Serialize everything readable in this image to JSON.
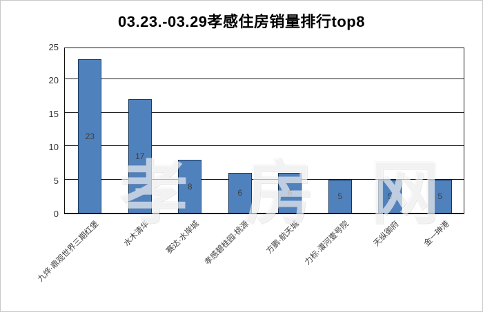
{
  "title": "03.23.-03.29孝感住房销量排行top8",
  "watermark_text": "孝房网",
  "chart_data": {
    "type": "bar",
    "title": "03.23.-03.29孝感住房销量排行top8",
    "categories": [
      "九烨·鼎观世界三期红堡",
      "水木清华",
      "赛达·水岸城",
      "孝感碧桂园·桃源",
      "方鹏·航天城",
      "力标·澴河壹号院",
      "天纵御府",
      "金一珅港"
    ],
    "values": [
      23,
      17,
      8,
      6,
      6,
      5,
      5,
      5
    ],
    "data_labels": [
      "23",
      "17",
      "8",
      "6",
      "6",
      "5",
      "5",
      "5"
    ],
    "xlabel": "",
    "ylabel": "",
    "ylim": [
      0,
      25
    ],
    "yticks": [
      0,
      5,
      10,
      15,
      20,
      25
    ],
    "grid": true,
    "legend_position": "none",
    "bar_color": "#4f81bd",
    "bar_border_color": "#16365c",
    "data_label_color": "#3f3f3f",
    "axis_text_color": "#404040"
  }
}
